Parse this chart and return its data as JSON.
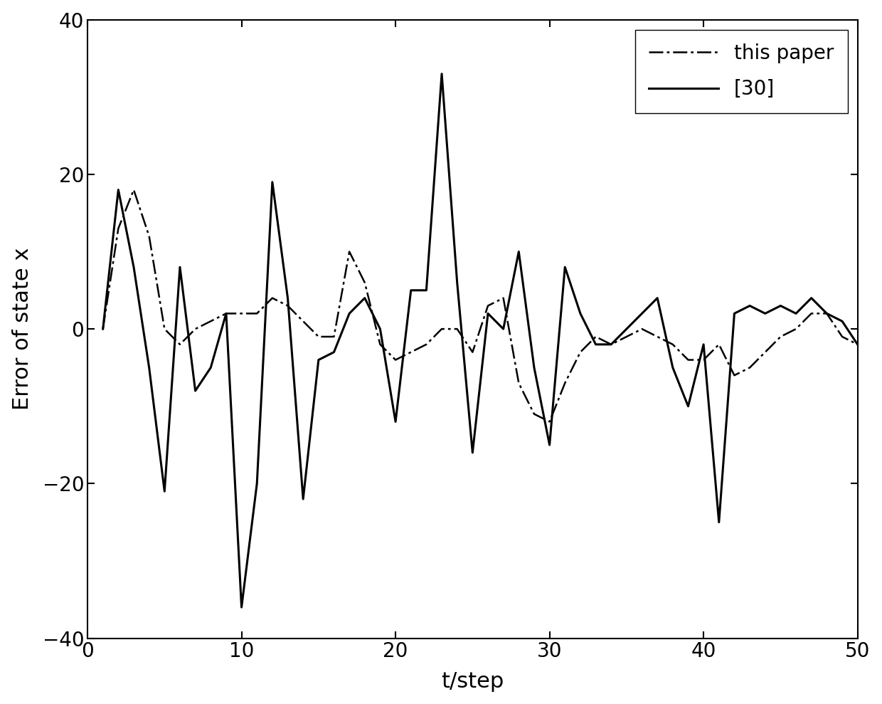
{
  "xlabel": "t/step",
  "ylabel": "Error of state x",
  "xlim": [
    0,
    50
  ],
  "ylim": [
    -40,
    40
  ],
  "xticks": [
    0,
    10,
    20,
    30,
    40,
    50
  ],
  "yticks": [
    -40,
    -20,
    0,
    20,
    40
  ],
  "background_color": "#ffffff",
  "line_color": "#000000",
  "legend_labels": [
    "this paper",
    "[30]"
  ],
  "this_paper_x": [
    1,
    2,
    3,
    4,
    5,
    6,
    7,
    8,
    9,
    10,
    11,
    12,
    13,
    14,
    15,
    16,
    17,
    18,
    19,
    20,
    21,
    22,
    23,
    24,
    25,
    26,
    27,
    28,
    29,
    30,
    31,
    32,
    33,
    34,
    35,
    36,
    37,
    38,
    39,
    40,
    41,
    42,
    43,
    44,
    45,
    46,
    47,
    48,
    49,
    50
  ],
  "this_paper_y": [
    0,
    13,
    18,
    12,
    0,
    -2,
    0,
    1,
    2,
    2,
    2,
    4,
    3,
    1,
    -1,
    -1,
    10,
    6,
    -2,
    -4,
    -3,
    -2,
    0,
    0,
    -3,
    3,
    4,
    -7,
    -11,
    -12,
    -7,
    -3,
    -1,
    -2,
    -1,
    0,
    -1,
    -2,
    -4,
    -4,
    -2,
    -6,
    -5,
    -3,
    -1,
    0,
    2,
    2,
    -1,
    -2
  ],
  "ref30_x": [
    1,
    2,
    3,
    4,
    5,
    6,
    7,
    8,
    9,
    10,
    11,
    12,
    13,
    14,
    15,
    16,
    17,
    18,
    19,
    20,
    21,
    22,
    23,
    24,
    25,
    26,
    27,
    28,
    29,
    30,
    31,
    32,
    33,
    34,
    35,
    36,
    37,
    38,
    39,
    40,
    41,
    42,
    43,
    44,
    45,
    46,
    47,
    48,
    49,
    50
  ],
  "ref30_y": [
    0,
    18,
    8,
    -5,
    -21,
    8,
    -8,
    -5,
    2,
    -36,
    -20,
    19,
    4,
    -22,
    -4,
    -3,
    2,
    4,
    0,
    -12,
    5,
    5,
    33,
    6,
    -16,
    2,
    0,
    10,
    -5,
    -15,
    8,
    2,
    -2,
    -2,
    0,
    2,
    4,
    -5,
    -10,
    -2,
    -25,
    2,
    3,
    2,
    3,
    2,
    4,
    2,
    1,
    -2
  ],
  "this_paper_lw": 1.8,
  "ref30_lw": 2.2,
  "xlabel_fontsize": 22,
  "ylabel_fontsize": 22,
  "tick_fontsize": 20,
  "legend_fontsize": 20
}
